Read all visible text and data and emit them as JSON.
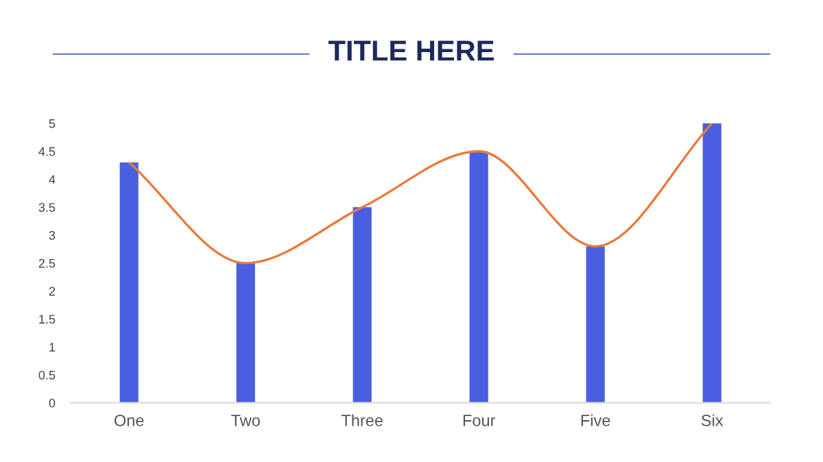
{
  "chart_data": {
    "type": "bar",
    "title": "TITLE HERE",
    "categories": [
      "One",
      "Two",
      "Three",
      "Four",
      "Five",
      "Six"
    ],
    "series": [
      {
        "color": "#4a5fe0",
        "values": [
          4.3,
          2.5,
          3.5,
          4.5,
          2.8,
          5
        ]
      },
      {
        "type": "line",
        "color": "#e87a3c",
        "values": [
          4.3,
          2.5,
          3.5,
          4.5,
          2.8,
          5
        ]
      }
    ],
    "ylim": [
      0,
      5
    ],
    "yticks": [
      0,
      0.5,
      1,
      1.5,
      2,
      2.5,
      3,
      3.5,
      4,
      4.5,
      5
    ],
    "grid": false,
    "marker": "none",
    "line_style": "solid"
  }
}
